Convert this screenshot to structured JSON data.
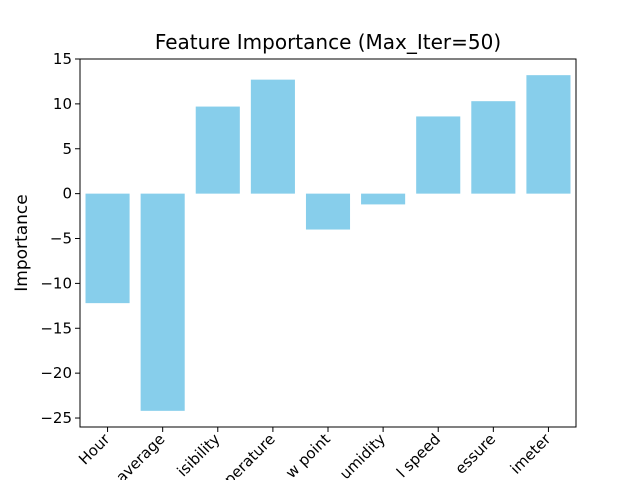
{
  "chart_data": {
    "type": "bar",
    "title": "Feature Importance (Max_Iter=50)",
    "xlabel": "",
    "ylabel": "Importance",
    "categories": [
      "Hour",
      "average",
      "isibility",
      "perature",
      "w point",
      "umidity",
      "l speed",
      "essure",
      "imeter"
    ],
    "values": [
      -12.2,
      -24.2,
      9.7,
      12.7,
      -4.0,
      -1.2,
      8.6,
      10.3,
      13.2
    ],
    "ylim": [
      -26,
      15
    ],
    "yticks": [
      -25,
      -20,
      -15,
      -10,
      -5,
      0,
      5,
      10,
      15
    ],
    "ytick_labels": [
      "−25",
      "−20",
      "−15",
      "−10",
      "−5",
      "0",
      "5",
      "10",
      "15"
    ],
    "bar_color": "#87ceeb",
    "grid": false,
    "legend": "none"
  }
}
